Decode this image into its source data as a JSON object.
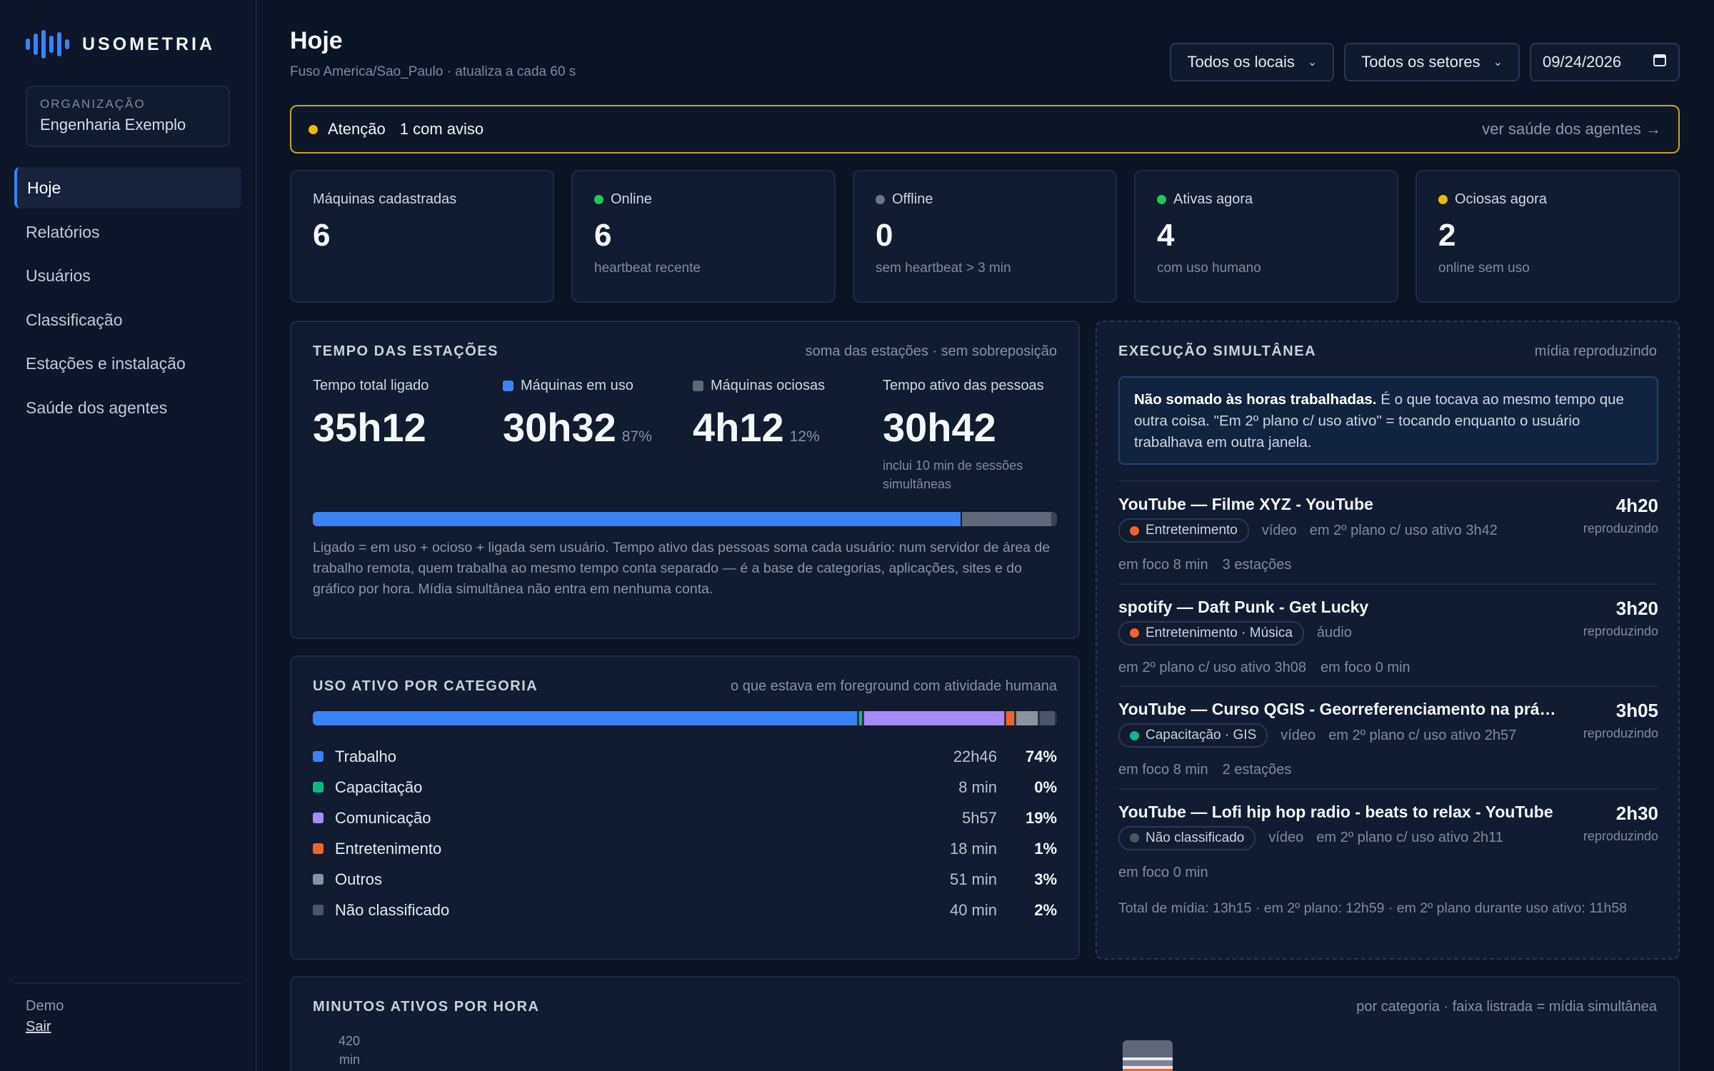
{
  "brand": {
    "name": "USOMETRIA"
  },
  "org": {
    "label": "ORGANIZAÇÃO",
    "name": "Engenharia Exemplo"
  },
  "nav": {
    "items": [
      {
        "label": "Hoje"
      },
      {
        "label": "Relatórios"
      },
      {
        "label": "Usuários"
      },
      {
        "label": "Classificação"
      },
      {
        "label": "Estações e instalação"
      },
      {
        "label": "Saúde dos agentes"
      }
    ]
  },
  "footer": {
    "user": "Demo",
    "logout": "Sair"
  },
  "header": {
    "title": "Hoje",
    "subtitle": "Fuso America/Sao_Paulo · atualiza a cada 60 s",
    "filters": {
      "location": "Todos os locais",
      "sector": "Todos os setores",
      "date": "09/24/2026"
    }
  },
  "alert": {
    "title": "Atenção",
    "message": "1 com aviso",
    "link": "ver saúde dos agentes →",
    "color": "#f5b50a"
  },
  "stats": [
    {
      "label": "Máquinas cadastradas",
      "value": "6",
      "sub": ""
    },
    {
      "label": "Online",
      "value": "6",
      "sub": "heartbeat recente"
    },
    {
      "label": "Offline",
      "value": "0",
      "sub": "sem heartbeat > 3 min"
    },
    {
      "label": "Ativas agora",
      "value": "4",
      "sub": "com uso humano"
    },
    {
      "label": "Ociosas agora",
      "value": "2",
      "sub": "online sem uso"
    }
  ],
  "station_time": {
    "title": "TEMPO DAS ESTAÇÕES",
    "note": "soma das estações · sem sobreposição",
    "metrics": [
      {
        "label": "Tempo total ligado",
        "value": "35h12",
        "pct": ""
      },
      {
        "label": "Máquinas em uso",
        "value": "30h32",
        "pct": "87%"
      },
      {
        "label": "Máquinas ociosas",
        "value": "4h12",
        "pct": "12%"
      },
      {
        "label": "Tempo ativo das pessoas",
        "value": "30h42",
        "pct": ""
      }
    ],
    "active_note": "inclui 10 min de sessões simultâneas",
    "bar": {
      "in_use": 87,
      "idle": 12,
      "other": 1
    },
    "description": "Ligado = em uso + ocioso + ligada sem usuário. Tempo ativo das pessoas soma cada usuário: num servidor de área de trabalho remota, quem trabalha ao mesmo tempo conta separado — é a base de categorias, aplicações, sites e do gráfico por hora. Mídia simultânea não entra em nenhuma conta."
  },
  "categories": {
    "title": "USO ATIVO POR CATEGORIA",
    "note": "o que estava em foreground com atividade humana",
    "items": [
      {
        "name": "Trabalho",
        "time": "22h46",
        "pct": "74%",
        "share": 74,
        "color": "#3b82f6"
      },
      {
        "name": "Capacitação",
        "time": "8 min",
        "pct": "0%",
        "share": 0.4,
        "color": "#10b981"
      },
      {
        "name": "Comunicação",
        "time": "5h57",
        "pct": "19%",
        "share": 19,
        "color": "#a78bfa"
      },
      {
        "name": "Entretenimento",
        "time": "18 min",
        "pct": "1%",
        "share": 1,
        "color": "#f0642a"
      },
      {
        "name": "Outros",
        "time": "51 min",
        "pct": "3%",
        "share": 3,
        "color": "#8b93a1"
      },
      {
        "name": "Não classificado",
        "time": "40 min",
        "pct": "2%",
        "share": 2,
        "color": "#4b5565"
      }
    ]
  },
  "media": {
    "title": "EXECUÇÃO SIMULTÂNEA",
    "note": "mídia reproduzindo",
    "info_bold": "Não somado às horas trabalhadas.",
    "info_text": " É o que tocava ao mesmo tempo que outra coisa. \"Em 2º plano c/ uso ativo\" = tocando enquanto o usuário trabalhava em outra janela.",
    "items": [
      {
        "title": "YouTube — Filme XYZ - YouTube",
        "tag": "Entretenimento",
        "tag_color": "#f0642a",
        "kind": "vídeo",
        "bg": "em 2º plano c/ uso ativo 3h42",
        "focus": "em foco 8 min",
        "extra": "3 estações",
        "duration": "4h20",
        "state": "reproduzindo"
      },
      {
        "title": "spotify — Daft Punk - Get Lucky",
        "tag": "Entretenimento · Música",
        "tag_color": "#f0642a",
        "kind": "áudio",
        "bg": "",
        "focus": "em 2º plano c/ uso ativo 3h08",
        "extra": "em foco 0 min",
        "duration": "3h20",
        "state": "reproduzindo"
      },
      {
        "title": "YouTube — Curso QGIS - Georreferenciamento na prática em 2026",
        "tag": "Capacitação · GIS",
        "tag_color": "#10b981",
        "kind": "vídeo",
        "bg": "em 2º plano c/ uso ativo 2h57",
        "focus": "em foco 8 min",
        "extra": "2 estações",
        "duration": "3h05",
        "state": "reproduzindo"
      },
      {
        "title": "YouTube — Lofi hip hop radio - beats to relax - YouTube",
        "tag": "Não classificado",
        "tag_color": "#4b5565",
        "kind": "vídeo",
        "bg": "em 2º plano c/ uso ativo 2h11",
        "focus": "em foco 0 min",
        "extra": "",
        "duration": "2h30",
        "state": "reproduzindo"
      }
    ],
    "total": "Total de mídia: 13h15 · em 2º plano: 12h59 · em 2º plano durante uso ativo: 11h58"
  },
  "hourly": {
    "title": "MINUTOS ATIVOS POR HORA",
    "note": "por categoria · faixa listrada = mídia simultânea",
    "y_top": "420",
    "y_unit": "min"
  }
}
